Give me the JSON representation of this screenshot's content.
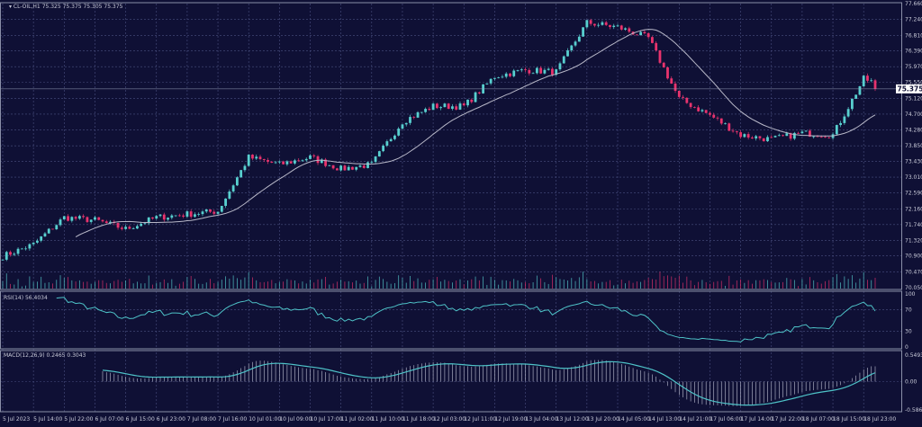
{
  "header": {
    "symbol": "CL-OIL,H1",
    "ohlc": "75.325 75.375 75.305 75.375"
  },
  "colors": {
    "background": "#0f1035",
    "grid": "#4a4f80",
    "up": "#58cfcf",
    "down": "#e8336d",
    "ma": "#b8b8c8",
    "indicator": "#4ec3c8",
    "current_price_bg": "#ffffff"
  },
  "chart_data": {
    "type": "candlestick",
    "symbol": "CL-OIL",
    "timeframe": "H1",
    "ylim": [
      70.05,
      77.66
    ],
    "y_ticks": [
      "77.660",
      "77.240",
      "76.810",
      "76.390",
      "75.970",
      "75.550",
      "75.120",
      "74.700",
      "74.280",
      "73.850",
      "73.430",
      "73.010",
      "72.590",
      "72.160",
      "71.740",
      "71.320",
      "70.900",
      "70.470",
      "70.050"
    ],
    "current_price": "75.375",
    "x_ticks": [
      "5 Jul 2023",
      "5 Jul 14:00",
      "5 Jul 22:00",
      "6 Jul 07:00",
      "6 Jul 15:00",
      "6 Jul 23:00",
      "7 Jul 08:00",
      "7 Jul 16:00",
      "10 Jul 01:00",
      "10 Jul 09:00",
      "10 Jul 17:00",
      "11 Jul 02:00",
      "11 Jul 10:00",
      "11 Jul 18:00",
      "12 Jul 03:00",
      "12 Jul 11:00",
      "12 Jul 19:00",
      "13 Jul 04:00",
      "13 Jul 12:00",
      "13 Jul 20:00",
      "14 Jul 05:00",
      "14 Jul 13:00",
      "14 Jul 21:00",
      "17 Jul 06:00",
      "17 Jul 14:00",
      "17 Jul 22:00",
      "18 Jul 07:00",
      "18 Jul 15:00",
      "18 Jul 23:00"
    ],
    "close_at_ticks": [
      70.89,
      71.21,
      71.93,
      71.86,
      71.62,
      71.93,
      72.02,
      72.1,
      73.54,
      73.35,
      73.54,
      73.23,
      73.35,
      74.5,
      74.91,
      74.91,
      75.71,
      75.88,
      75.83,
      77.15,
      77.03,
      76.74,
      75.11,
      74.67,
      74.14,
      74.02,
      74.19,
      74.14,
      75.64
    ],
    "last_close": 75.375,
    "overlay": "moving average",
    "rsi": {
      "label": "RSI(14) 56.4034",
      "ylim": [
        0,
        100
      ],
      "levels": [
        "100",
        "70",
        "30",
        "0"
      ]
    },
    "macd": {
      "label": "MACD(12,26,9) 0.2465 0.3043",
      "ylim": [
        -0.5866,
        0.5493
      ],
      "ticks": [
        "0.5493",
        "0.00",
        "-0.5866"
      ]
    }
  }
}
